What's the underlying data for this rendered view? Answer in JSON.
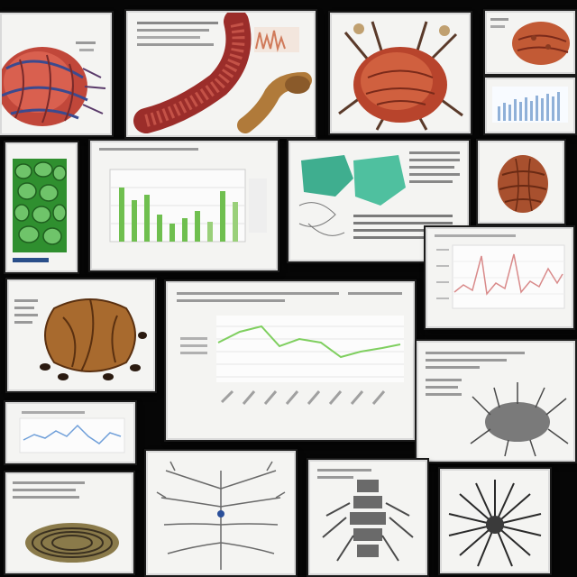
{
  "collage": {
    "description_visible_text": [],
    "background_color": "#060606",
    "card_color": "#f4f4f2",
    "cards": [
      {
        "id": "c01",
        "subject": "red-vascular-organism"
      },
      {
        "id": "c02",
        "subject": "red-segmented-worm"
      },
      {
        "id": "c03",
        "subject": "red-crab-creature"
      },
      {
        "id": "c04",
        "subject": "red-cell-cluster"
      },
      {
        "id": "c05",
        "subject": "bar-chart-thumbnail"
      },
      {
        "id": "c06",
        "subject": "green-cellular-tissue"
      },
      {
        "id": "c07",
        "subject": "green-bar-chart"
      },
      {
        "id": "c08",
        "subject": "teal-molecular-diagram"
      },
      {
        "id": "c09",
        "subject": "brown-seed-pod"
      },
      {
        "id": "c10",
        "subject": "pink-line-chart"
      },
      {
        "id": "c11",
        "subject": "orange-shell-organism"
      },
      {
        "id": "c12",
        "subject": "green-line-chart"
      },
      {
        "id": "c13",
        "subject": "gray-bristle-creature"
      },
      {
        "id": "c14",
        "subject": "blue-line-chart-small"
      },
      {
        "id": "c15",
        "subject": "coiled-specimen"
      },
      {
        "id": "c16",
        "subject": "gray-branching-tree"
      },
      {
        "id": "c17",
        "subject": "gray-vertebral-structure"
      },
      {
        "id": "c18",
        "subject": "radial-filament-organism"
      }
    ],
    "accent_colors": {
      "red_organic": "#b8442c",
      "green_tissue": "#2f8f2f",
      "teal": "#3fae8f",
      "brown": "#a86a2e",
      "chart_green": "#6fbf4f",
      "chart_pink": "#d98a8a",
      "chart_blue": "#6f9fd9",
      "gray_structure": "#6a6a6a"
    }
  }
}
